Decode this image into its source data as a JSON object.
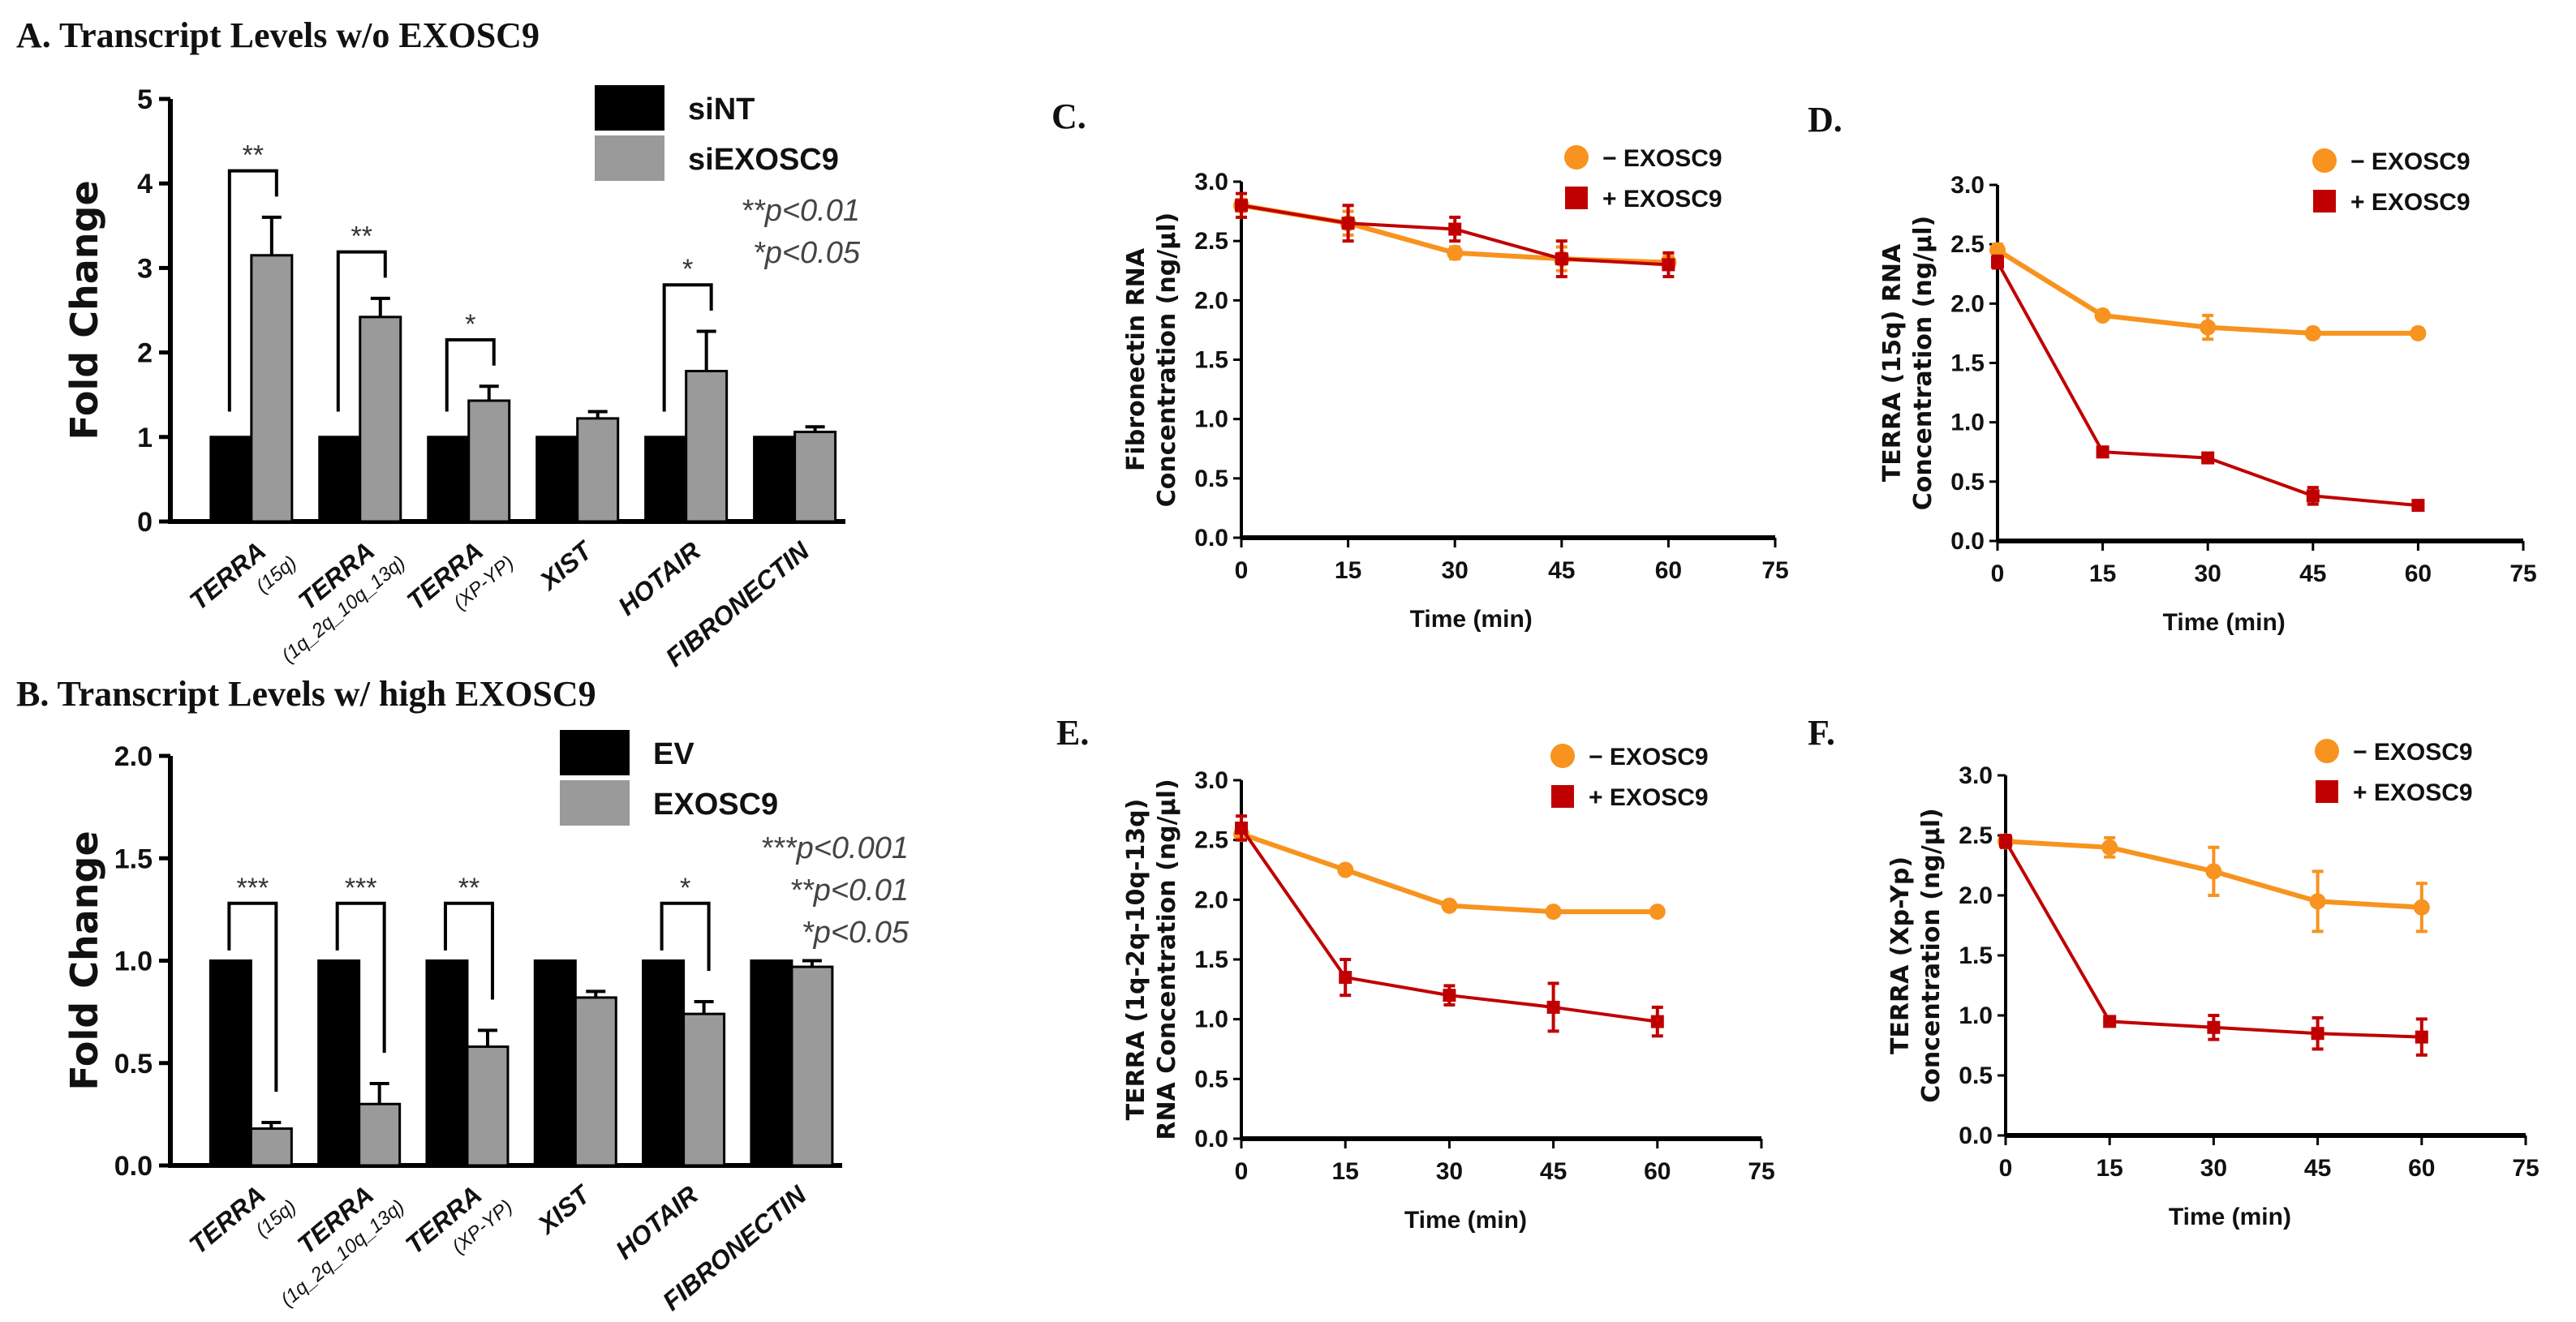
{
  "chart_data": [
    {
      "type": "bar",
      "panel": "A",
      "title": "A. Transcript Levels w/o EXOSC9",
      "ylabel": "Fold Change",
      "ylim": [
        0,
        5
      ],
      "yticks": [
        "0",
        "1",
        "2",
        "3",
        "4",
        "5"
      ],
      "categories": [
        {
          "name": "TERRA",
          "sub": "(15q)"
        },
        {
          "name": "TERRA",
          "sub": "(1q_2q_10q_13q)"
        },
        {
          "name": "TERRA",
          "sub": "(XP-YP)"
        },
        {
          "name": "XIST",
          "sub": ""
        },
        {
          "name": "HOTAIR",
          "sub": ""
        },
        {
          "name": "FIBRONECTIN",
          "sub": ""
        }
      ],
      "series": [
        {
          "name": "siNT",
          "color": "#000000",
          "values": [
            1,
            1,
            1,
            1,
            1,
            1
          ],
          "errors": [
            0,
            0,
            0,
            0,
            0,
            0
          ]
        },
        {
          "name": "siEXOSC9",
          "color": "#9a9a9a",
          "values": [
            3.15,
            2.42,
            1.43,
            1.22,
            1.78,
            1.06
          ],
          "errors": [
            0.45,
            0.22,
            0.17,
            0.08,
            0.47,
            0.06
          ]
        }
      ],
      "significance": [
        "**",
        "**",
        "*",
        "",
        "*",
        ""
      ],
      "pvalue_legend": [
        "**p<0.01",
        "*p<0.05"
      ],
      "legend": "top-right"
    },
    {
      "type": "bar",
      "panel": "B",
      "title": "B. Transcript Levels w/ high EXOSC9",
      "ylabel": "Fold Change",
      "ylim": [
        0,
        2
      ],
      "yticks": [
        "0.0",
        "0.5",
        "1.0",
        "1.5",
        "2.0"
      ],
      "categories": [
        {
          "name": "TERRA",
          "sub": "(15q)"
        },
        {
          "name": "TERRA",
          "sub": "(1q_2q_10q_13q)"
        },
        {
          "name": "TERRA",
          "sub": "(XP-YP)"
        },
        {
          "name": "XIST",
          "sub": ""
        },
        {
          "name": "HOTAIR",
          "sub": ""
        },
        {
          "name": "FIBRONECTIN",
          "sub": ""
        }
      ],
      "series": [
        {
          "name": "EV",
          "color": "#000000",
          "values": [
            1,
            1,
            1,
            1,
            1,
            1
          ],
          "errors": [
            0,
            0,
            0,
            0,
            0,
            0
          ]
        },
        {
          "name": "EXOSC9",
          "color": "#9a9a9a",
          "values": [
            0.18,
            0.3,
            0.58,
            0.82,
            0.74,
            0.97
          ],
          "errors": [
            0.03,
            0.1,
            0.08,
            0.03,
            0.06,
            0.03
          ]
        }
      ],
      "significance": [
        "***",
        "***",
        "**",
        "",
        "*",
        ""
      ],
      "pvalue_legend": [
        "***p<0.001",
        "**p<0.01",
        "*p<0.05"
      ],
      "legend": "top-right"
    },
    {
      "type": "line",
      "panel": "C",
      "title": "C.",
      "xlabel": "Time (min)",
      "ylabel": [
        "Fibronectin RNA",
        "Concentration (ng/µl)"
      ],
      "x": [
        0,
        15,
        30,
        45,
        60
      ],
      "xlim": [
        0,
        75
      ],
      "xticks": [
        "0",
        "15",
        "30",
        "45",
        "60",
        "75"
      ],
      "ylim": [
        0,
        3
      ],
      "yticks": [
        "0.0",
        "0.5",
        "1.0",
        "1.5",
        "2.0",
        "2.5",
        "3.0"
      ],
      "series": [
        {
          "name": "− EXOSC9",
          "color": "#f7931e",
          "marker": "circle",
          "values": [
            2.8,
            2.65,
            2.4,
            2.35,
            2.32
          ],
          "errors": [
            0.05,
            0.1,
            0.05,
            0.1,
            0.05
          ]
        },
        {
          "name": "+ EXOSC9",
          "color": "#c00000",
          "marker": "square",
          "values": [
            2.8,
            2.65,
            2.6,
            2.35,
            2.3
          ],
          "errors": [
            0.1,
            0.15,
            0.1,
            0.15,
            0.1
          ]
        }
      ],
      "legend": "top-right"
    },
    {
      "type": "line",
      "panel": "D",
      "title": "D.",
      "xlabel": "Time (min)",
      "ylabel": [
        "TERRA (15q) RNA",
        "Concentration (ng/µl)"
      ],
      "x": [
        0,
        15,
        30,
        45,
        60
      ],
      "xlim": [
        0,
        75
      ],
      "xticks": [
        "0",
        "15",
        "30",
        "45",
        "60",
        "75"
      ],
      "ylim": [
        0,
        3
      ],
      "yticks": [
        "0.0",
        "0.5",
        "1.0",
        "1.5",
        "2.0",
        "2.5",
        "3.0"
      ],
      "series": [
        {
          "name": "− EXOSC9",
          "color": "#f7931e",
          "marker": "circle",
          "values": [
            2.45,
            1.9,
            1.8,
            1.75,
            1.75
          ],
          "errors": [
            0.05,
            0.03,
            0.1,
            0.04,
            0.04
          ]
        },
        {
          "name": "+ EXOSC9",
          "color": "#c00000",
          "marker": "square",
          "values": [
            2.35,
            0.75,
            0.7,
            0.38,
            0.3
          ],
          "errors": [
            0.05,
            0.04,
            0.03,
            0.07,
            0.03
          ]
        }
      ],
      "legend": "top-right"
    },
    {
      "type": "line",
      "panel": "E",
      "title": "E.",
      "xlabel": "Time (min)",
      "ylabel": [
        "TERRA (1q-2q-10q-13q)",
        "RNA Concentration (ng/µl)"
      ],
      "x": [
        0,
        15,
        30,
        45,
        60
      ],
      "xlim": [
        0,
        75
      ],
      "xticks": [
        "0",
        "15",
        "30",
        "45",
        "60",
        "75"
      ],
      "ylim": [
        0,
        3
      ],
      "yticks": [
        "0.0",
        "0.5",
        "1.0",
        "1.5",
        "2.0",
        "2.5",
        "3.0"
      ],
      "series": [
        {
          "name": "− EXOSC9",
          "color": "#f7931e",
          "marker": "circle",
          "values": [
            2.55,
            2.25,
            1.95,
            1.9,
            1.9
          ],
          "errors": [
            0.05,
            0.03,
            0.03,
            0.02,
            0.02
          ]
        },
        {
          "name": "+ EXOSC9",
          "color": "#c00000",
          "marker": "square",
          "values": [
            2.6,
            1.35,
            1.2,
            1.1,
            0.98
          ],
          "errors": [
            0.1,
            0.15,
            0.08,
            0.2,
            0.12
          ]
        }
      ],
      "legend": "top-right"
    },
    {
      "type": "line",
      "panel": "F",
      "title": "F.",
      "xlabel": "Time (min)",
      "ylabel": [
        "TERRA (Xp-Yp)",
        "Concentration (ng/µl)"
      ],
      "x": [
        0,
        15,
        30,
        45,
        60
      ],
      "xlim": [
        0,
        75
      ],
      "xticks": [
        "0",
        "15",
        "30",
        "45",
        "60",
        "75"
      ],
      "ylim": [
        0,
        3
      ],
      "yticks": [
        "0.0",
        "0.5",
        "1.0",
        "1.5",
        "2.0",
        "2.5",
        "3.0"
      ],
      "series": [
        {
          "name": "− EXOSC9",
          "color": "#f7931e",
          "marker": "circle",
          "values": [
            2.45,
            2.4,
            2.2,
            1.95,
            1.9
          ],
          "errors": [
            0.05,
            0.08,
            0.2,
            0.25,
            0.2
          ]
        },
        {
          "name": "+ EXOSC9",
          "color": "#c00000",
          "marker": "square",
          "values": [
            2.45,
            0.95,
            0.9,
            0.85,
            0.82
          ],
          "errors": [
            0.05,
            0.03,
            0.1,
            0.13,
            0.15
          ]
        }
      ],
      "legend": "top-right"
    }
  ]
}
